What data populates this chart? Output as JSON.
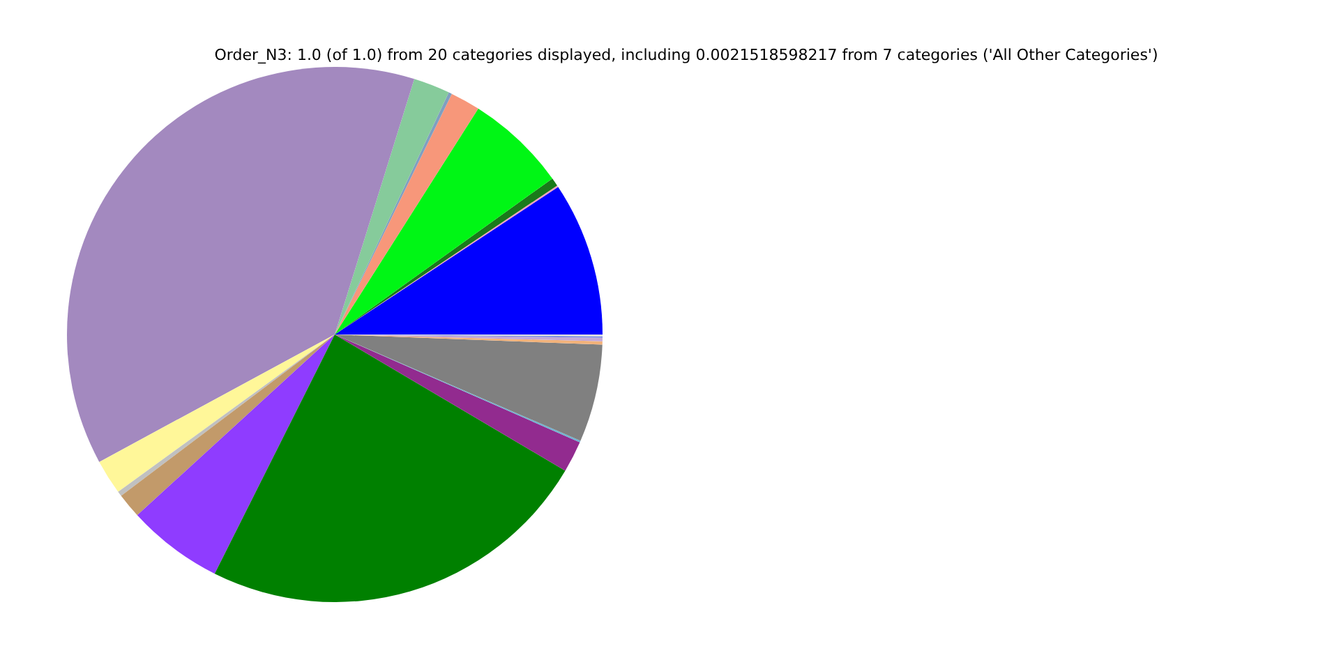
{
  "chart_data": {
    "type": "pie",
    "title": "Order_N3: 1.0 (of 1.0) from 20 categories displayed, including 0.0021518598217 from 7 categories ('All Other Categories')",
    "categories": [
      null,
      null,
      null,
      null,
      null,
      null,
      null,
      null,
      null,
      null,
      null,
      null,
      null,
      null,
      null,
      null,
      null,
      null,
      null,
      null
    ],
    "values": [
      9.3,
      0.1,
      0.5,
      6.1,
      1.8,
      0.2,
      2.2,
      37.7,
      2.1,
      0.3,
      1.5,
      5.8,
      23.9,
      1.9,
      0.1,
      5.9,
      0.2,
      0.2,
      0.1,
      0.1
    ],
    "colors": [
      "#0000ff",
      "#f4a0c0",
      "#1a7a1a",
      "#00f615",
      "#f7977a",
      "#7f9fc0",
      "#86cb9b",
      "#a389bf",
      "#fff799",
      "#c0c0c0",
      "#c29a6a",
      "#8f3cff",
      "#008000",
      "#922b8f",
      "#6fb3d0",
      "#808080",
      "#f2b27a",
      "#c3a8d8",
      "#8090e0",
      "#e0e0e0"
    ]
  }
}
